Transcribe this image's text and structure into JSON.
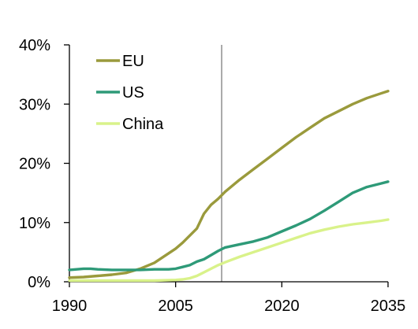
{
  "chart_data": {
    "type": "line",
    "title": "",
    "xlabel": "",
    "ylabel": "",
    "xlim": [
      1990,
      2035
    ],
    "ylim": [
      0,
      40
    ],
    "x_ticks": [
      1990,
      2005,
      2020,
      2035
    ],
    "x_tick_labels": [
      "1990",
      "2005",
      "2020",
      "2035"
    ],
    "y_ticks": [
      0,
      10,
      20,
      30,
      40
    ],
    "y_tick_labels": [
      "0%",
      "10%",
      "20%",
      "30%",
      "40%"
    ],
    "grid": false,
    "legend_position": "top-left",
    "reference_line_x": 2011.5,
    "series": [
      {
        "name": "EU",
        "color": "#9a9a3c",
        "x": [
          1990,
          1992,
          1994,
          1996,
          1998,
          2000,
          2002,
          2003,
          2004,
          2005,
          2006,
          2007,
          2008,
          2009,
          2010,
          2011,
          2012,
          2014,
          2016,
          2018,
          2020,
          2022,
          2024,
          2026,
          2028,
          2030,
          2032,
          2034,
          2035
        ],
        "y": [
          0.7,
          0.8,
          1.0,
          1.2,
          1.5,
          2.2,
          3.2,
          4.0,
          4.8,
          5.6,
          6.6,
          7.8,
          9.0,
          11.5,
          13.0,
          14.0,
          15.2,
          17.2,
          19.0,
          20.8,
          22.6,
          24.4,
          26.0,
          27.6,
          28.8,
          30.0,
          31.0,
          31.8,
          32.2
        ]
      },
      {
        "name": "US",
        "color": "#2e9a78",
        "x": [
          1990,
          1991,
          1992,
          1993,
          1994,
          1996,
          1998,
          2000,
          2002,
          2004,
          2005,
          2006,
          2007,
          2008,
          2009,
          2010,
          2011,
          2012,
          2014,
          2016,
          2018,
          2020,
          2022,
          2024,
          2026,
          2028,
          2030,
          2032,
          2034,
          2035
        ],
        "y": [
          2.0,
          2.1,
          2.2,
          2.2,
          2.1,
          2.0,
          2.0,
          2.0,
          2.1,
          2.1,
          2.2,
          2.5,
          2.8,
          3.4,
          3.8,
          4.5,
          5.2,
          5.8,
          6.3,
          6.8,
          7.5,
          8.5,
          9.5,
          10.6,
          12.0,
          13.5,
          15.0,
          16.0,
          16.6,
          16.9
        ]
      },
      {
        "name": "China",
        "color": "#d9f28a",
        "x": [
          1990,
          1993,
          1996,
          1999,
          2002,
          2005,
          2006,
          2007,
          2008,
          2009,
          2010,
          2011,
          2012,
          2014,
          2016,
          2018,
          2020,
          2022,
          2024,
          2026,
          2028,
          2030,
          2032,
          2034,
          2035
        ],
        "y": [
          0.2,
          0.2,
          0.2,
          0.2,
          0.2,
          0.3,
          0.4,
          0.6,
          1.0,
          1.6,
          2.2,
          2.8,
          3.3,
          4.2,
          5.0,
          5.8,
          6.6,
          7.4,
          8.2,
          8.8,
          9.3,
          9.7,
          10.0,
          10.3,
          10.5
        ]
      }
    ]
  }
}
